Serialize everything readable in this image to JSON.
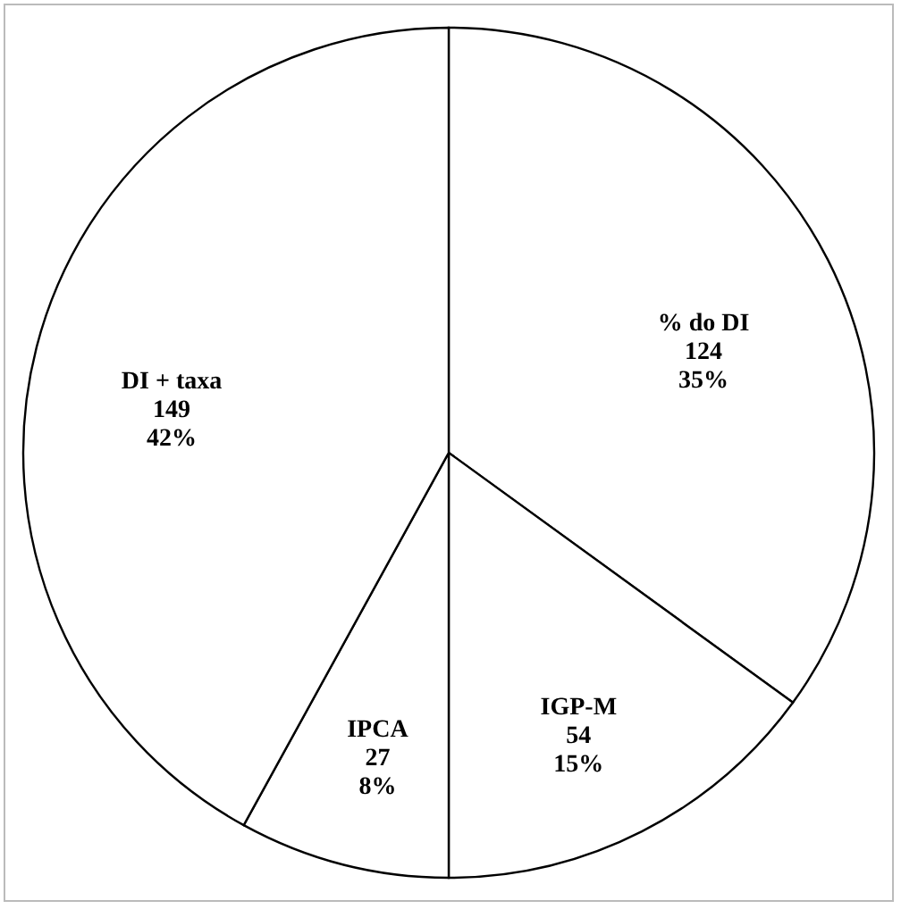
{
  "chart_data": {
    "type": "pie",
    "categories": [
      "% do DI",
      "IGP-M",
      "IPCA",
      "DI + taxa"
    ],
    "values": [
      35,
      15,
      8,
      42
    ],
    "colors": [
      "#ffffff",
      "#ffffff",
      "#ffffff",
      "#ffffff"
    ],
    "value_labels": [
      "124\n35%",
      "54\n15%",
      "27\n8%",
      "149\n42%"
    ],
    "legend": false
  }
}
